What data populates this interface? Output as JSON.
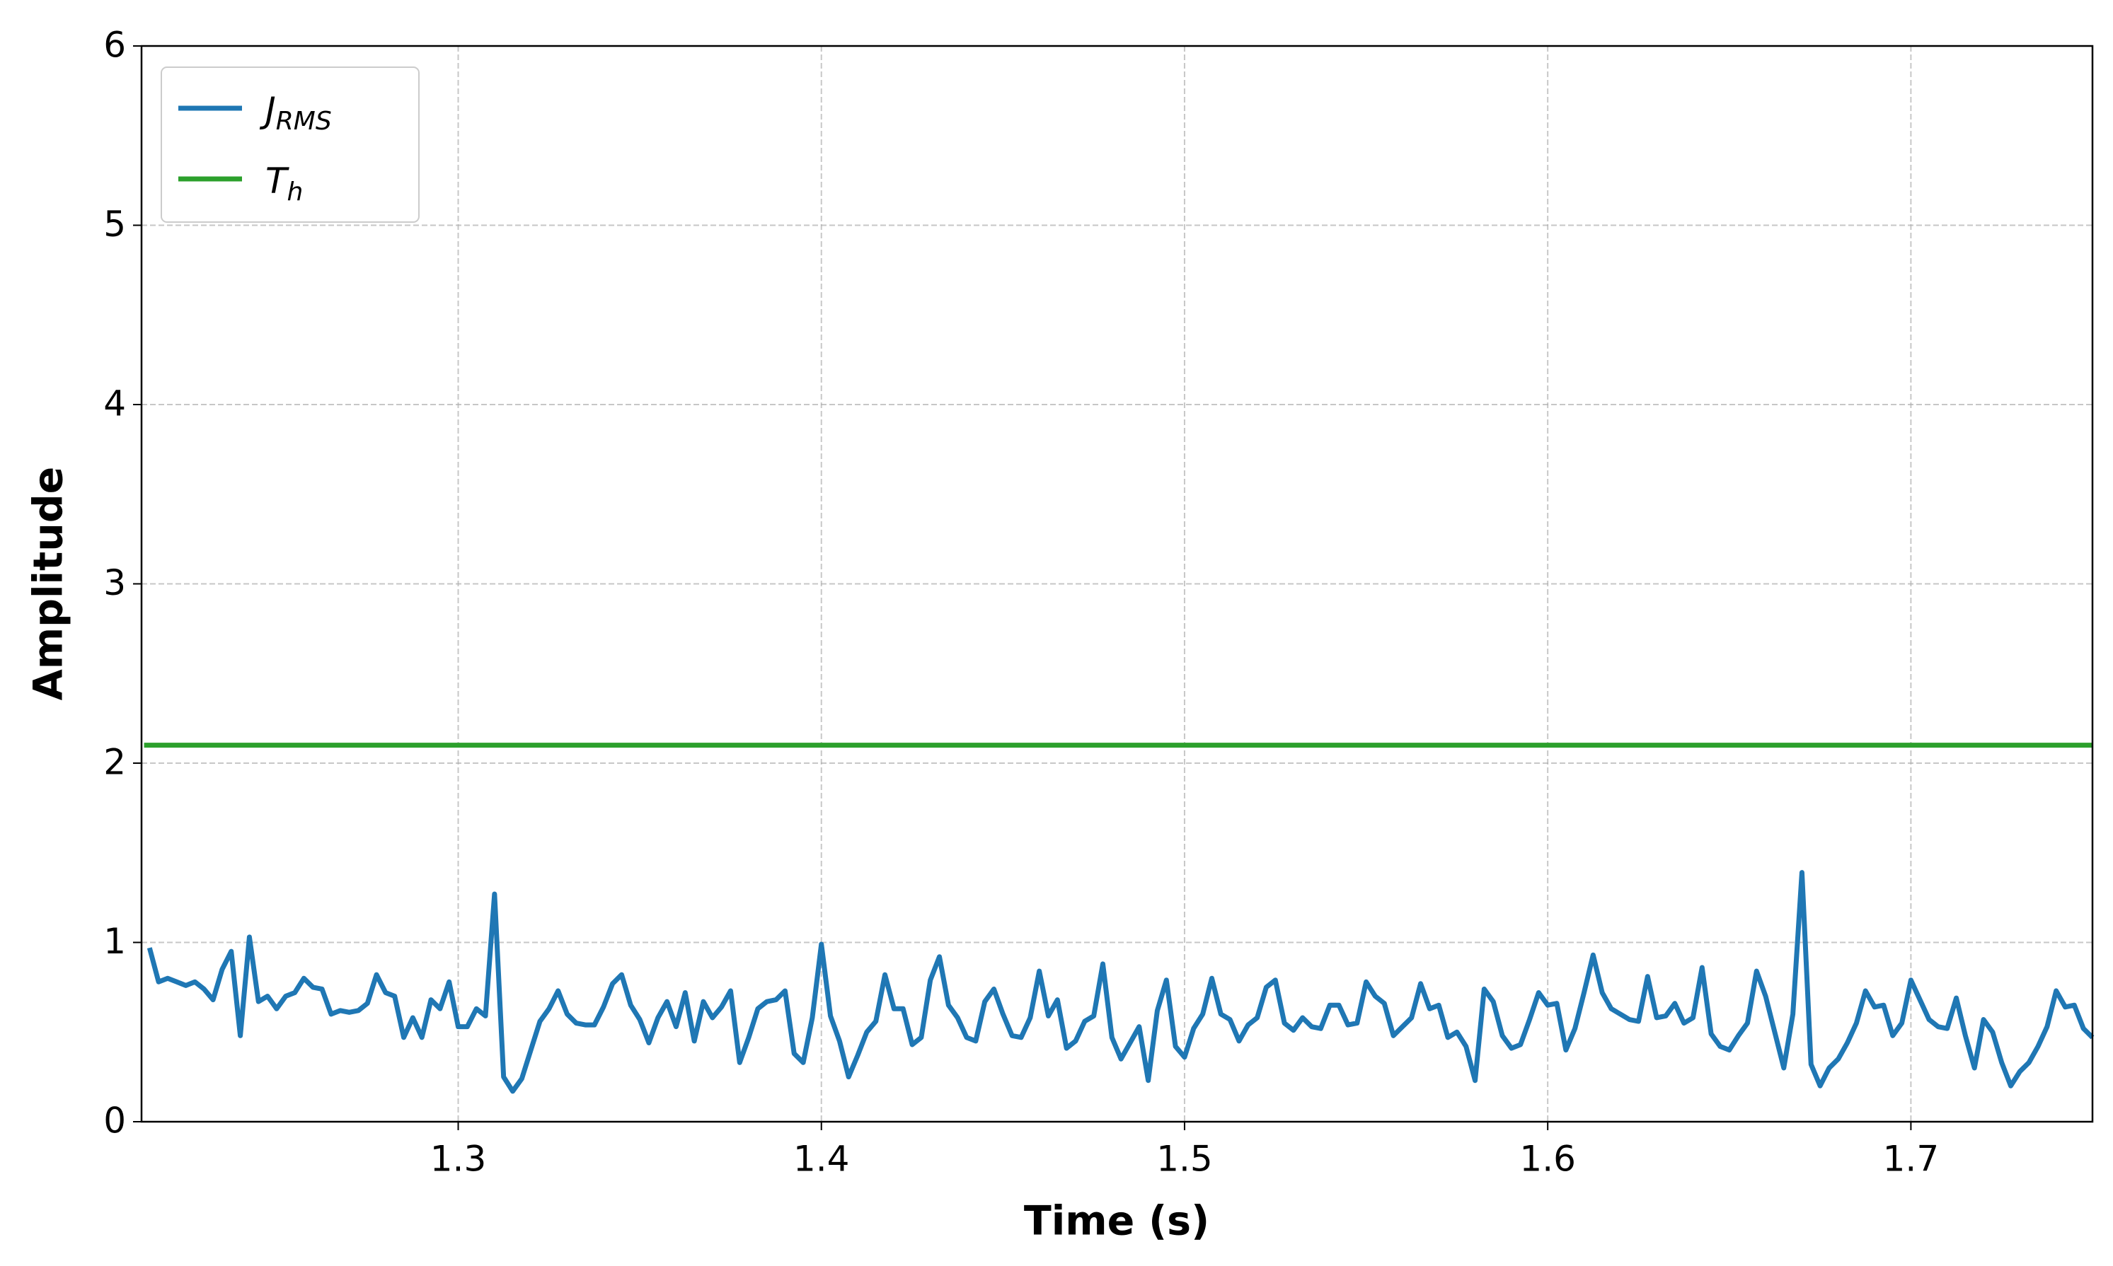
{
  "chart_data": {
    "type": "line",
    "xlabel": "Time (s)",
    "ylabel": "Amplitude",
    "xlim": [
      1.2128,
      1.75
    ],
    "ylim": [
      0,
      6
    ],
    "xticks": [
      1.3,
      1.4,
      1.5,
      1.6,
      1.7
    ],
    "yticks": [
      0,
      1,
      2,
      3,
      4,
      5,
      6
    ],
    "grid": true,
    "legend": "upper left",
    "series": [
      {
        "name": "J",
        "subscript": "RMS",
        "color": "#1f77b4",
        "x": [
          1.215,
          1.2175,
          1.22,
          1.2225,
          1.225,
          1.2275,
          1.23,
          1.2325,
          1.235,
          1.2375,
          1.24,
          1.2425,
          1.245,
          1.2475,
          1.25,
          1.2525,
          1.255,
          1.2575,
          1.26,
          1.2625,
          1.265,
          1.2675,
          1.27,
          1.2725,
          1.275,
          1.2775,
          1.28,
          1.2825,
          1.285,
          1.2875,
          1.29,
          1.2925,
          1.295,
          1.2975,
          1.3,
          1.3025,
          1.305,
          1.3075,
          1.31,
          1.3125,
          1.315,
          1.3175,
          1.32,
          1.3225,
          1.325,
          1.3275,
          1.33,
          1.3325,
          1.335,
          1.3375,
          1.34,
          1.3425,
          1.345,
          1.3475,
          1.35,
          1.3525,
          1.355,
          1.3575,
          1.36,
          1.3625,
          1.365,
          1.3675,
          1.37,
          1.3725,
          1.375,
          1.3775,
          1.38,
          1.3825,
          1.385,
          1.3875,
          1.39,
          1.3925,
          1.395,
          1.3975,
          1.4,
          1.4025,
          1.405,
          1.4075,
          1.41,
          1.4125,
          1.415,
          1.4175,
          1.42,
          1.4225,
          1.425,
          1.4275,
          1.43,
          1.4325,
          1.435,
          1.4375,
          1.44,
          1.4425,
          1.445,
          1.4475,
          1.45,
          1.4525,
          1.455,
          1.4575,
          1.46,
          1.4625,
          1.465,
          1.4675,
          1.47,
          1.4725,
          1.475,
          1.4775,
          1.48,
          1.4825,
          1.485,
          1.4875,
          1.49,
          1.4925,
          1.495,
          1.4975,
          1.5,
          1.5025,
          1.505,
          1.5075,
          1.51,
          1.5125,
          1.515,
          1.5175,
          1.52,
          1.5225,
          1.525,
          1.5275,
          1.53,
          1.5325,
          1.535,
          1.5375,
          1.54,
          1.5425,
          1.545,
          1.5475,
          1.55,
          1.5525,
          1.555,
          1.5575,
          1.56,
          1.5625,
          1.565,
          1.5675,
          1.57,
          1.5725,
          1.575,
          1.5775,
          1.58,
          1.5825,
          1.585,
          1.5875,
          1.59,
          1.5925,
          1.595,
          1.5975,
          1.6,
          1.6025,
          1.605,
          1.6075,
          1.61,
          1.6125,
          1.615,
          1.6175,
          1.62,
          1.6225,
          1.625,
          1.6275,
          1.63,
          1.6325,
          1.635,
          1.6375,
          1.64,
          1.6425,
          1.645,
          1.6475,
          1.65,
          1.6525,
          1.655,
          1.6575,
          1.66,
          1.6625,
          1.665,
          1.6675,
          1.67,
          1.6725,
          1.675,
          1.6775,
          1.68,
          1.6825,
          1.685,
          1.6875,
          1.69,
          1.6925,
          1.695,
          1.6975,
          1.7,
          1.7025,
          1.705,
          1.7075,
          1.71,
          1.7125,
          1.715,
          1.7175,
          1.72,
          1.7225,
          1.725,
          1.7275,
          1.73,
          1.7325,
          1.735,
          1.7375,
          1.74,
          1.7425,
          1.745,
          1.7475,
          1.75
        ],
        "values": [
          0.97,
          0.78,
          0.8,
          0.78,
          0.76,
          0.78,
          0.74,
          0.68,
          0.85,
          0.95,
          0.48,
          1.03,
          0.67,
          0.7,
          0.63,
          0.7,
          0.72,
          0.8,
          0.75,
          0.74,
          0.6,
          0.62,
          0.61,
          0.62,
          0.66,
          0.82,
          0.72,
          0.7,
          0.47,
          0.58,
          0.47,
          0.68,
          0.63,
          0.78,
          0.53,
          0.53,
          0.63,
          0.59,
          1.27,
          0.25,
          0.17,
          0.24,
          0.4,
          0.56,
          0.63,
          0.73,
          0.6,
          0.55,
          0.54,
          0.54,
          0.64,
          0.77,
          0.82,
          0.65,
          0.57,
          0.44,
          0.58,
          0.67,
          0.53,
          0.72,
          0.45,
          0.67,
          0.58,
          0.64,
          0.73,
          0.33,
          0.47,
          0.63,
          0.67,
          0.68,
          0.73,
          0.38,
          0.33,
          0.58,
          0.99,
          0.59,
          0.45,
          0.25,
          0.37,
          0.5,
          0.56,
          0.82,
          0.63,
          0.63,
          0.43,
          0.47,
          0.79,
          0.92,
          0.65,
          0.58,
          0.47,
          0.45,
          0.67,
          0.74,
          0.6,
          0.48,
          0.47,
          0.58,
          0.84,
          0.59,
          0.68,
          0.41,
          0.45,
          0.56,
          0.59,
          0.88,
          0.47,
          0.35,
          0.44,
          0.53,
          0.23,
          0.62,
          0.79,
          0.42,
          0.36,
          0.52,
          0.6,
          0.8,
          0.6,
          0.57,
          0.45,
          0.54,
          0.58,
          0.75,
          0.79,
          0.55,
          0.51,
          0.58,
          0.53,
          0.52,
          0.65,
          0.65,
          0.54,
          0.55,
          0.78,
          0.7,
          0.66,
          0.48,
          0.53,
          0.58,
          0.77,
          0.63,
          0.65,
          0.47,
          0.5,
          0.42,
          0.23,
          0.74,
          0.67,
          0.48,
          0.41,
          0.43,
          0.57,
          0.72,
          0.65,
          0.66,
          0.4,
          0.52,
          0.72,
          0.93,
          0.72,
          0.63,
          0.6,
          0.57,
          0.56,
          0.81,
          0.58,
          0.59,
          0.66,
          0.55,
          0.58,
          0.86,
          0.49,
          0.42,
          0.4,
          0.48,
          0.55,
          0.84,
          0.7,
          0.5,
          0.3,
          0.6,
          1.39,
          0.32,
          0.2,
          0.3,
          0.35,
          0.44,
          0.55,
          0.73,
          0.64,
          0.65,
          0.48,
          0.55,
          0.79,
          0.68,
          0.57,
          0.53,
          0.52,
          0.69,
          0.48,
          0.3,
          0.57,
          0.5,
          0.33,
          0.2,
          0.28,
          0.33,
          0.42,
          0.53,
          0.73,
          0.64,
          0.65,
          0.52,
          0.47
        ]
      },
      {
        "name": "T",
        "subscript": "h",
        "color": "#2ca02c",
        "x": [
          1.2135,
          1.75
        ],
        "values": [
          2.1,
          2.1
        ]
      }
    ]
  }
}
